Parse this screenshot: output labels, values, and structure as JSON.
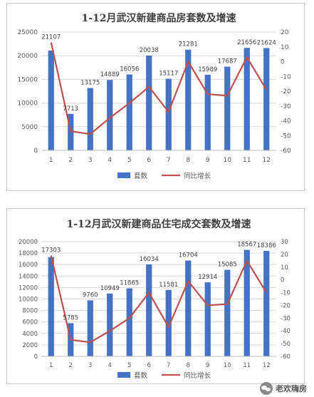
{
  "chart_data": [
    {
      "type": "bar",
      "title": "1-12月武汉新建商品房套数及增速",
      "categories": [
        "1",
        "2",
        "3",
        "4",
        "5",
        "6",
        "7",
        "8",
        "9",
        "10",
        "11",
        "12"
      ],
      "series": [
        {
          "name": "套数",
          "type": "bar",
          "axis": "left",
          "values": [
            21107,
            7713,
            13175,
            14889,
            16056,
            20038,
            15117,
            21281,
            15989,
            17687,
            21656,
            21624
          ],
          "labels": [
            "21107",
            "7713",
            "13175",
            "14889",
            "16056",
            "20038",
            "15117",
            "21281",
            "15989",
            "17687",
            "21656",
            "21624"
          ]
        },
        {
          "name": "同比增长",
          "type": "line",
          "axis": "right",
          "values": [
            13,
            -47,
            -49,
            -38,
            -28,
            -17,
            -34,
            0,
            -22,
            -23,
            3,
            -19
          ]
        }
      ],
      "ylim": [
        0,
        25000
      ],
      "yticks": [
        "0",
        "5000",
        "10000",
        "15000",
        "20000",
        "25000"
      ],
      "y2lim": [
        -60,
        20
      ],
      "y2ticks": [
        "-60",
        "-50",
        "-40",
        "-30",
        "-20",
        "-10",
        "0",
        "10",
        "20"
      ],
      "grid": true,
      "legend_position": "bottom"
    },
    {
      "type": "bar",
      "title": "1-12月武汉新建商品住宅成交套数及增速",
      "categories": [
        "1",
        "2",
        "3",
        "4",
        "5",
        "6",
        "7",
        "8",
        "9",
        "10",
        "11",
        "12"
      ],
      "series": [
        {
          "name": "套数",
          "type": "bar",
          "axis": "left",
          "values": [
            17303,
            5785,
            9760,
            10949,
            11865,
            16034,
            11581,
            16704,
            12914,
            15085,
            18567,
            18386
          ],
          "labels": [
            "17303",
            "5785",
            "9760",
            "10949",
            "11865",
            "16034",
            "11581",
            "16704",
            "12914",
            "15085",
            "18567",
            "18386"
          ]
        },
        {
          "name": "同比增长",
          "type": "line",
          "axis": "right",
          "values": [
            19,
            -47,
            -49,
            -40,
            -30,
            -10,
            -37,
            -1,
            -20,
            -19,
            15,
            -10
          ]
        }
      ],
      "ylim": [
        0,
        20000
      ],
      "yticks": [
        "0",
        "2000",
        "4000",
        "6000",
        "8000",
        "10000",
        "12000",
        "14000",
        "16000",
        "18000",
        "20000"
      ],
      "y2lim": [
        -60,
        30
      ],
      "y2ticks": [
        "-60",
        "-50",
        "-40",
        "-30",
        "-20",
        "-10",
        "0",
        "10",
        "20",
        "30"
      ],
      "grid": true,
      "legend_position": "bottom"
    }
  ],
  "colors": {
    "bar": "#4472c4",
    "line": "#c0504d",
    "grid": "#d9d9d9",
    "axis_text": "#595959"
  },
  "watermark": {
    "icon": "chat-bubble-icon",
    "text": "老欢嗨房"
  }
}
